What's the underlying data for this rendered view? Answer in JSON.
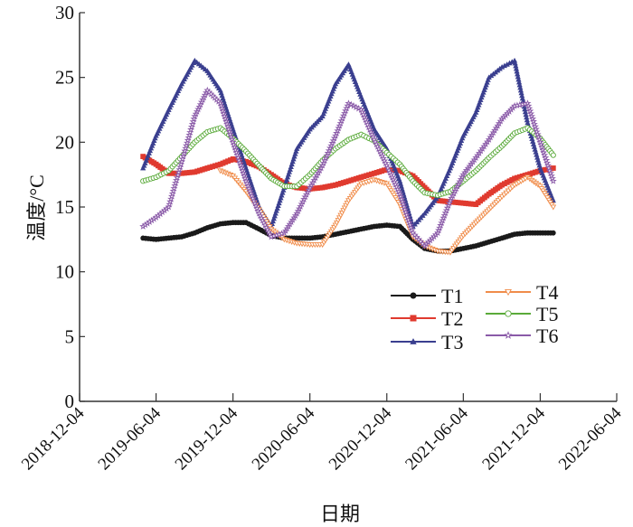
{
  "chart_data": {
    "type": "line",
    "title": "",
    "xlabel": "日期",
    "ylabel": "温度/°C",
    "ylim": [
      0,
      30
    ],
    "yticks": [
      0,
      5,
      10,
      15,
      20,
      25,
      30
    ],
    "xlim": [
      "2018-12-04",
      "2022-06-04"
    ],
    "xticks": [
      "2018-12-04",
      "2019-06-04",
      "2019-12-04",
      "2020-06-04",
      "2020-12-04",
      "2021-06-04",
      "2021-12-04",
      "2022-06-04"
    ],
    "grid": false,
    "legend_position": "lower-right",
    "x": [
      "2019-05-04",
      "2019-06-04",
      "2019-07-04",
      "2019-08-04",
      "2019-09-04",
      "2019-10-04",
      "2019-11-04",
      "2019-12-04",
      "2020-01-04",
      "2020-02-04",
      "2020-03-04",
      "2020-04-04",
      "2020-05-04",
      "2020-06-04",
      "2020-07-04",
      "2020-08-04",
      "2020-09-04",
      "2020-10-04",
      "2020-11-04",
      "2020-12-04",
      "2021-01-04",
      "2021-02-04",
      "2021-03-04",
      "2021-04-04",
      "2021-05-04",
      "2021-06-04",
      "2021-07-04",
      "2021-08-04",
      "2021-09-04",
      "2021-10-04",
      "2021-11-04",
      "2021-12-04",
      "2022-01-04"
    ],
    "series": [
      {
        "name": "T1",
        "color": "#1a1a1a",
        "marker": "filled-circle",
        "values": [
          12.6,
          12.5,
          12.6,
          12.7,
          13.0,
          13.4,
          13.7,
          13.8,
          13.8,
          13.3,
          12.8,
          12.6,
          12.6,
          12.6,
          12.7,
          12.9,
          13.1,
          13.3,
          13.5,
          13.6,
          13.5,
          12.5,
          11.8,
          11.6,
          11.6,
          11.8,
          12.0,
          12.3,
          12.6,
          12.9,
          13.0,
          13.0,
          13.0
        ]
      },
      {
        "name": "T2",
        "color": "#e03a2f",
        "marker": "filled-square",
        "values": [
          18.9,
          18.3,
          17.6,
          17.6,
          17.7,
          18.0,
          18.3,
          18.7,
          18.5,
          18.1,
          17.5,
          16.8,
          16.5,
          16.4,
          16.5,
          16.7,
          17.0,
          17.3,
          17.6,
          17.9,
          17.8,
          17.4,
          16.5,
          15.5,
          15.4,
          15.3,
          15.2,
          16.0,
          16.7,
          17.2,
          17.5,
          17.8,
          18.0
        ]
      },
      {
        "name": "T3",
        "color": "#3a3f8f",
        "marker": "filled-triangle",
        "values": [
          18.0,
          20.5,
          22.5,
          24.5,
          26.3,
          25.5,
          24.0,
          21.0,
          18.0,
          15.0,
          13.5,
          16.5,
          19.5,
          21.0,
          22.0,
          24.5,
          26.0,
          23.5,
          21.0,
          19.5,
          17.0,
          13.5,
          14.5,
          15.8,
          18.0,
          20.5,
          22.3,
          25.0,
          25.8,
          26.3,
          21.5,
          18.0,
          15.5
        ]
      },
      {
        "name": "T4",
        "color": "#f08c4a",
        "marker": "hollow-triangle-down",
        "values": [
          null,
          null,
          null,
          null,
          null,
          null,
          17.8,
          17.4,
          16.2,
          14.8,
          13.3,
          12.5,
          12.2,
          12.1,
          12.1,
          13.6,
          15.5,
          16.8,
          17.1,
          16.8,
          15.2,
          12.7,
          12.0,
          11.6,
          11.5,
          12.8,
          13.8,
          14.8,
          15.8,
          16.7,
          17.3,
          16.6,
          15.0
        ]
      },
      {
        "name": "T5",
        "color": "#5aaa3a",
        "marker": "hollow-circle",
        "values": [
          17.0,
          17.3,
          17.8,
          18.9,
          20.0,
          20.8,
          21.1,
          20.3,
          19.3,
          18.2,
          17.2,
          16.6,
          16.6,
          17.5,
          18.6,
          19.5,
          20.2,
          20.6,
          20.1,
          19.2,
          18.3,
          17.0,
          16.1,
          15.9,
          16.2,
          17.0,
          17.8,
          18.8,
          19.7,
          20.7,
          21.1,
          20.3,
          19.0
        ]
      },
      {
        "name": "T6",
        "color": "#8a5aa8",
        "marker": "hollow-star",
        "values": [
          13.5,
          14.2,
          15.0,
          18.5,
          22.0,
          24.0,
          23.0,
          20.0,
          17.0,
          14.5,
          12.7,
          13.0,
          14.5,
          16.5,
          18.2,
          20.5,
          23.0,
          22.5,
          20.2,
          18.2,
          16.0,
          13.0,
          12.0,
          13.0,
          15.5,
          17.5,
          18.8,
          20.2,
          21.8,
          22.8,
          23.0,
          20.0,
          17.0
        ]
      }
    ]
  }
}
